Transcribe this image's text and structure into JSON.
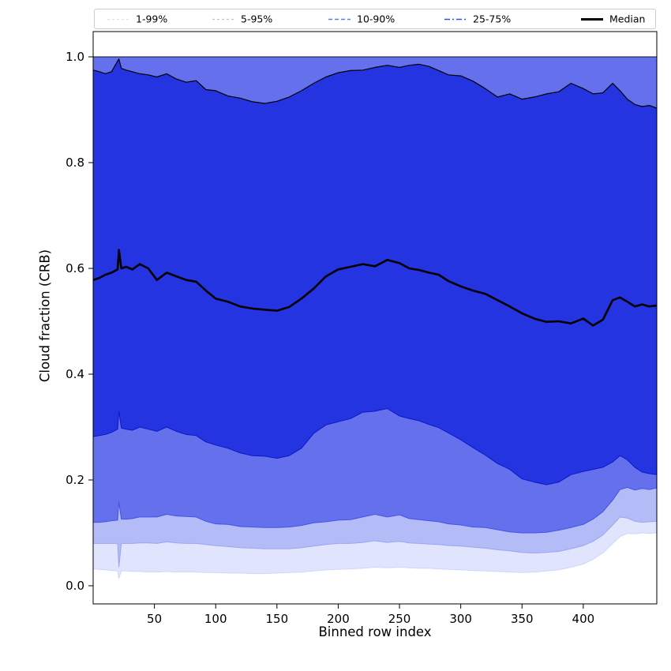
{
  "figure": {
    "background": "#ffffff"
  },
  "chart_data": {
    "type": "area",
    "title": "",
    "xlabel": "Binned row index",
    "ylabel": "Cloud fraction (CRB)",
    "xlim": [
      0,
      460
    ],
    "ylim": [
      -0.035,
      1.048
    ],
    "xticks": [
      50,
      100,
      150,
      200,
      250,
      300,
      350,
      400
    ],
    "yticks": [
      0.0,
      0.2,
      0.4,
      0.6,
      0.8,
      1.0
    ],
    "grid": false,
    "legend_position": "top-outside-horizontal",
    "x": [
      0,
      5,
      10,
      15,
      20,
      21,
      23,
      27,
      32,
      38,
      45,
      52,
      60,
      68,
      76,
      84,
      92,
      100,
      110,
      120,
      130,
      140,
      150,
      160,
      170,
      180,
      190,
      200,
      210,
      220,
      230,
      240,
      250,
      258,
      266,
      274,
      282,
      290,
      300,
      310,
      320,
      330,
      340,
      350,
      360,
      370,
      380,
      390,
      400,
      408,
      416,
      424,
      430,
      436,
      442,
      448,
      454,
      460
    ],
    "percentiles": {
      "median": [
        0.578,
        0.582,
        0.588,
        0.592,
        0.598,
        0.635,
        0.6,
        0.603,
        0.598,
        0.608,
        0.6,
        0.578,
        0.592,
        0.585,
        0.578,
        0.575,
        0.558,
        0.543,
        0.537,
        0.528,
        0.524,
        0.522,
        0.52,
        0.527,
        0.543,
        0.562,
        0.585,
        0.598,
        0.603,
        0.608,
        0.604,
        0.616,
        0.61,
        0.6,
        0.597,
        0.592,
        0.588,
        0.576,
        0.566,
        0.558,
        0.552,
        0.54,
        0.528,
        0.515,
        0.505,
        0.499,
        0.5,
        0.496,
        0.505,
        0.492,
        0.503,
        0.54,
        0.545,
        0.537,
        0.528,
        0.532,
        0.528,
        0.53
      ],
      "p75": [
        0.975,
        0.972,
        0.968,
        0.972,
        0.992,
        0.996,
        0.978,
        0.975,
        0.972,
        0.968,
        0.966,
        0.962,
        0.968,
        0.958,
        0.952,
        0.955,
        0.938,
        0.936,
        0.926,
        0.922,
        0.915,
        0.912,
        0.916,
        0.924,
        0.936,
        0.95,
        0.962,
        0.97,
        0.974,
        0.975,
        0.98,
        0.984,
        0.98,
        0.984,
        0.986,
        0.982,
        0.974,
        0.966,
        0.964,
        0.954,
        0.94,
        0.924,
        0.93,
        0.92,
        0.924,
        0.93,
        0.934,
        0.95,
        0.94,
        0.93,
        0.932,
        0.95,
        0.936,
        0.92,
        0.91,
        0.906,
        0.908,
        0.903
      ],
      "p25": [
        0.282,
        0.284,
        0.286,
        0.29,
        0.296,
        0.33,
        0.298,
        0.296,
        0.294,
        0.3,
        0.296,
        0.292,
        0.3,
        0.292,
        0.286,
        0.284,
        0.272,
        0.266,
        0.26,
        0.251,
        0.246,
        0.245,
        0.241,
        0.246,
        0.26,
        0.288,
        0.304,
        0.31,
        0.316,
        0.328,
        0.33,
        0.335,
        0.321,
        0.316,
        0.312,
        0.305,
        0.299,
        0.289,
        0.276,
        0.261,
        0.247,
        0.231,
        0.22,
        0.202,
        0.196,
        0.191,
        0.196,
        0.21,
        0.216,
        0.22,
        0.224,
        0.234,
        0.246,
        0.238,
        0.224,
        0.215,
        0.212,
        0.21
      ],
      "p10": [
        0.12,
        0.12,
        0.121,
        0.123,
        0.124,
        0.158,
        0.126,
        0.126,
        0.127,
        0.13,
        0.13,
        0.13,
        0.135,
        0.132,
        0.131,
        0.13,
        0.122,
        0.117,
        0.116,
        0.112,
        0.111,
        0.11,
        0.11,
        0.111,
        0.114,
        0.119,
        0.121,
        0.124,
        0.125,
        0.13,
        0.135,
        0.13,
        0.134,
        0.127,
        0.125,
        0.123,
        0.121,
        0.117,
        0.115,
        0.111,
        0.11,
        0.106,
        0.102,
        0.1,
        0.1,
        0.101,
        0.105,
        0.11,
        0.116,
        0.126,
        0.14,
        0.162,
        0.182,
        0.186,
        0.181,
        0.184,
        0.182,
        0.185
      ],
      "p5": [
        0.08,
        0.08,
        0.08,
        0.08,
        0.08,
        0.036,
        0.08,
        0.08,
        0.08,
        0.081,
        0.081,
        0.08,
        0.083,
        0.081,
        0.08,
        0.08,
        0.078,
        0.076,
        0.074,
        0.072,
        0.071,
        0.07,
        0.07,
        0.07,
        0.072,
        0.075,
        0.078,
        0.08,
        0.08,
        0.082,
        0.085,
        0.082,
        0.084,
        0.081,
        0.08,
        0.079,
        0.078,
        0.076,
        0.075,
        0.073,
        0.071,
        0.068,
        0.066,
        0.063,
        0.062,
        0.063,
        0.065,
        0.07,
        0.076,
        0.084,
        0.096,
        0.115,
        0.13,
        0.128,
        0.122,
        0.12,
        0.121,
        0.122
      ],
      "p1": [
        0.032,
        0.031,
        0.03,
        0.029,
        0.028,
        0.014,
        0.028,
        0.028,
        0.027,
        0.027,
        0.026,
        0.026,
        0.027,
        0.026,
        0.026,
        0.026,
        0.025,
        0.025,
        0.024,
        0.024,
        0.023,
        0.023,
        0.024,
        0.025,
        0.026,
        0.028,
        0.03,
        0.031,
        0.032,
        0.033,
        0.035,
        0.034,
        0.035,
        0.034,
        0.033,
        0.033,
        0.032,
        0.031,
        0.03,
        0.029,
        0.028,
        0.027,
        0.026,
        0.025,
        0.026,
        0.028,
        0.03,
        0.035,
        0.041,
        0.05,
        0.062,
        0.08,
        0.093,
        0.099,
        0.098,
        0.1,
        0.099,
        0.1
      ]
    },
    "bands": [
      {
        "name": "band-1-99",
        "lower": "p1",
        "upper": 1.0,
        "fill": "#e0e4fc"
      },
      {
        "name": "band-5-95",
        "lower": "p5",
        "upper": 1.0,
        "fill": "#b4bcf8"
      },
      {
        "name": "band-10-90",
        "lower": "p10",
        "upper": 1.0,
        "fill": "#6571ec"
      },
      {
        "name": "band-25-75",
        "lower": "p25",
        "upper": "p75",
        "fill": "#2434e0"
      }
    ],
    "lines": [
      {
        "key": "p1",
        "color": "#cfd5fb",
        "width": 1
      },
      {
        "key": "p5",
        "color": "#9aa4f4",
        "width": 1
      },
      {
        "key": "p10",
        "color": "#4452e8",
        "width": 1
      },
      {
        "key": "p25",
        "color": "#0b19c9",
        "width": 1
      },
      {
        "key": "p75",
        "color": "#000000",
        "width": 1.2
      },
      {
        "key": "top",
        "const": 1.0,
        "color": "#14141e",
        "width": 1
      },
      {
        "key": "median",
        "color": "#000000",
        "width": 2.6
      }
    ],
    "legend": [
      {
        "label": "1-99%",
        "color": "#dcdffb",
        "dash": "3 3",
        "width": 1.2
      },
      {
        "label": "5-95%",
        "color": "#b8bff8",
        "dash": "3 3",
        "width": 1.2
      },
      {
        "label": "10-90%",
        "color": "#6b77ee",
        "dash": "5 3",
        "width": 1.4
      },
      {
        "label": "25-75%",
        "color": "#3a49e5",
        "dash": "7 3 2 3",
        "width": 1.6
      },
      {
        "label": "Median",
        "color": "#000000",
        "dash": "",
        "width": 3
      }
    ],
    "accent_colors": {
      "band_25_75": "#2434e0",
      "band_10_90": "#6571ec",
      "band_5_95": "#b4bcf8",
      "band_1_99": "#e0e4fc",
      "median": "#000000"
    }
  }
}
